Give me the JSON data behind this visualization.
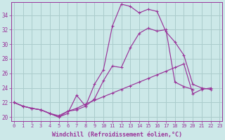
{
  "xlabel": "Windchill (Refroidissement éolien,°C)",
  "bg_color": "#cce8e8",
  "grid_color": "#aacccc",
  "line_color": "#993399",
  "hours": [
    0,
    1,
    2,
    3,
    4,
    5,
    6,
    7,
    8,
    9,
    10,
    11,
    12,
    13,
    14,
    15,
    16,
    17,
    18,
    19,
    20,
    21,
    22,
    23
  ],
  "line1": [
    22.0,
    21.5,
    21.2,
    21.0,
    20.5,
    20.0,
    20.5,
    23.0,
    21.5,
    24.5,
    26.5,
    32.5,
    35.5,
    35.2,
    34.3,
    34.8,
    34.5,
    31.7,
    30.3,
    28.5,
    24.5,
    24.0,
    23.8,
    null
  ],
  "line2": [
    22.0,
    21.5,
    21.2,
    21.0,
    20.5,
    20.0,
    20.8,
    21.0,
    21.5,
    22.5,
    25.0,
    27.0,
    26.8,
    29.5,
    31.5,
    32.2,
    31.8,
    32.0,
    24.8,
    24.2,
    23.8,
    null,
    null,
    null
  ],
  "line3": [
    22.0,
    21.5,
    21.2,
    21.0,
    20.5,
    20.2,
    20.8,
    21.2,
    21.8,
    22.3,
    22.8,
    23.3,
    23.8,
    24.3,
    24.8,
    25.3,
    25.8,
    26.3,
    26.8,
    27.3,
    23.2,
    23.8,
    24.0,
    null
  ],
  "ylim": [
    19.5,
    35.8
  ],
  "yticks": [
    20,
    22,
    24,
    26,
    28,
    30,
    32,
    34
  ],
  "xlim": [
    -0.3,
    23.3
  ]
}
